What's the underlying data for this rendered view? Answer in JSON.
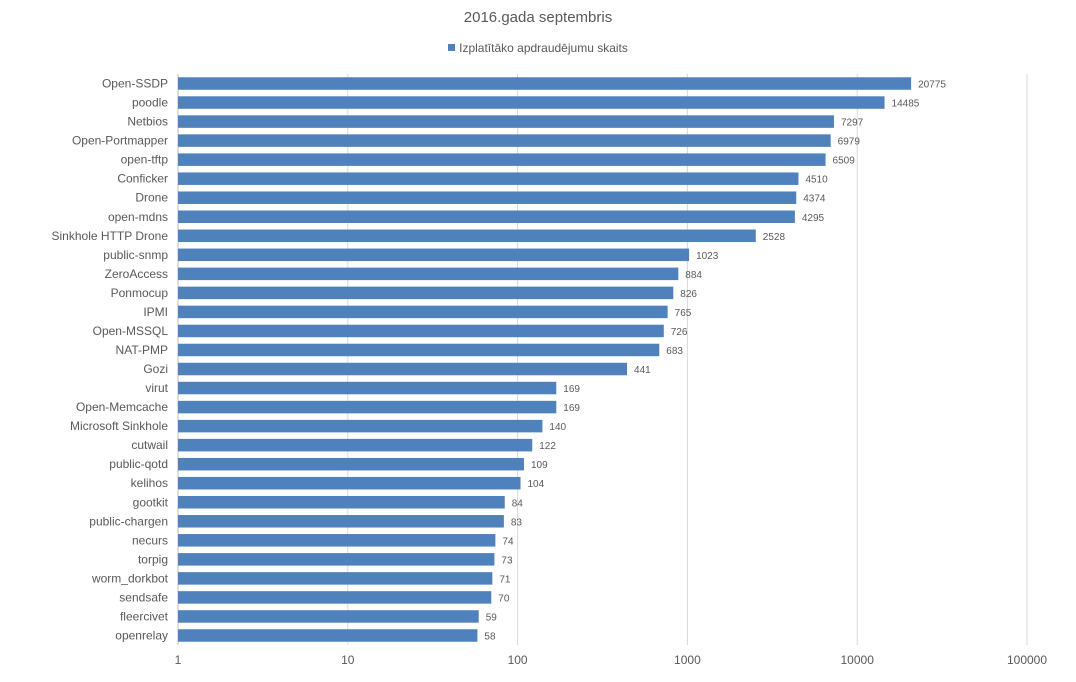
{
  "chart_data": {
    "type": "bar",
    "orientation": "horizontal",
    "title": "2016.gada septembris",
    "xscale": "log",
    "xlim": [
      1,
      100000
    ],
    "xticks": [
      "1",
      "10",
      "100",
      "1000",
      "10000",
      "100000"
    ],
    "grid": "vertical",
    "legend_position": "top",
    "series": [
      {
        "name": "Izplatītāko apdraudējumu skaits",
        "color": "#4f81bd",
        "categories": [
          "Open-SSDP",
          "poodle",
          "Netbios",
          "Open-Portmapper",
          "open-tftp",
          "Conficker",
          "Drone",
          "open-mdns",
          "Sinkhole HTTP Drone",
          "public-snmp",
          "ZeroAccess",
          "Ponmocup",
          "IPMI",
          "Open-MSSQL",
          "NAT-PMP",
          "Gozi",
          "virut",
          "Open-Memcache",
          "Microsoft Sinkhole",
          "cutwail",
          "public-qotd",
          "kelihos",
          "gootkit",
          "public-chargen",
          "necurs",
          "torpig",
          "worm_dorkbot",
          "sendsafe",
          "fleercivet",
          "openrelay"
        ],
        "values": [
          20775,
          14485,
          7297,
          6979,
          6509,
          4510,
          4374,
          4295,
          2528,
          1023,
          884,
          826,
          765,
          726,
          683,
          441,
          169,
          169,
          140,
          122,
          109,
          104,
          84,
          83,
          74,
          73,
          71,
          70,
          59,
          58
        ]
      }
    ]
  }
}
